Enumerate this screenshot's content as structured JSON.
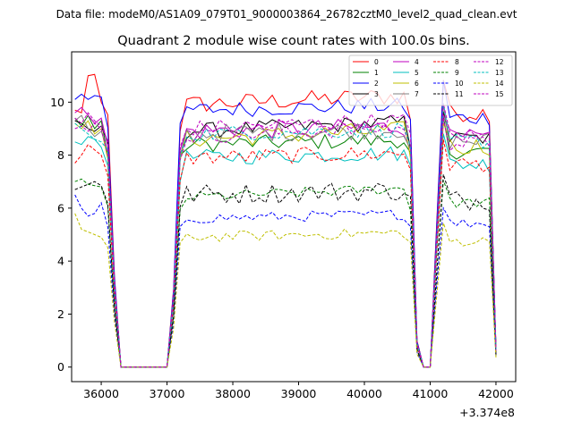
{
  "figure": {
    "suptitle": "Data file: modeM0/AS1A09_079T01_9000003864_26782cztM0_level2_quad_clean.evt"
  },
  "chart_data": {
    "type": "line",
    "title": "Quadrant 2 module wise count rates with 100.0s bins.",
    "xlabel": "",
    "ylabel": "",
    "x_offset_label": "+3.374e8",
    "xlim": [
      35550,
      42300
    ],
    "ylim": [
      -0.55,
      11.9
    ],
    "x_ticks": [
      36000,
      37000,
      38000,
      39000,
      40000,
      41000,
      42000
    ],
    "x_tick_labels": [
      "36000",
      "37000",
      "38000",
      "39000",
      "40000",
      "41000",
      "42000"
    ],
    "y_ticks": [
      0,
      2,
      4,
      6,
      8,
      10
    ],
    "y_tick_labels": [
      "0",
      "2",
      "4",
      "6",
      "8",
      "10"
    ],
    "grid": false,
    "legend_position": "top-right",
    "segments": [
      {
        "start": 35600,
        "end": 42000,
        "gaps": [
          [
            36300,
            37000
          ],
          [
            41000,
            41000
          ]
        ]
      }
    ],
    "series": [
      {
        "name": "0",
        "color": "#ff0000",
        "dash": "solid",
        "level": 9.9,
        "noise": 0.35,
        "first": [
          9.7,
          9.6,
          11.0,
          11.05,
          10.0
        ]
      },
      {
        "name": "1",
        "color": "#008000",
        "dash": "solid",
        "level": 8.4,
        "noise": 0.3,
        "first": [
          9.4,
          9.1,
          9.5,
          9.0,
          9.3
        ]
      },
      {
        "name": "2",
        "color": "#0000ff",
        "dash": "solid",
        "level": 9.7,
        "noise": 0.3,
        "first": [
          10.1,
          10.3,
          10.1,
          10.25,
          10.2
        ]
      },
      {
        "name": "3",
        "color": "#000000",
        "dash": "solid",
        "level": 8.9,
        "noise": 0.3,
        "first": [
          9.3,
          9.2,
          9.0,
          8.9,
          9.1
        ]
      },
      {
        "name": "4",
        "color": "#bf00bf",
        "dash": "solid",
        "level": 8.9,
        "noise": 0.35,
        "first": [
          9.6,
          9.8,
          9.5,
          9.2,
          9.4
        ]
      },
      {
        "name": "5",
        "color": "#00bfbf",
        "dash": "solid",
        "level": 7.9,
        "noise": 0.3,
        "first": [
          8.5,
          8.4,
          8.7,
          8.6,
          8.3
        ]
      },
      {
        "name": "6",
        "color": "#bfbf00",
        "dash": "solid",
        "level": 8.6,
        "noise": 0.35,
        "first": [
          9.2,
          9.0,
          9.3,
          8.8,
          9.0
        ]
      },
      {
        "name": "7",
        "color": "#808080",
        "dash": "solid",
        "level": 8.8,
        "noise": 0.35,
        "first": [
          9.3,
          9.5,
          9.0,
          8.7,
          8.9
        ]
      },
      {
        "name": "8",
        "color": "#ff0000",
        "dash": "dashed",
        "level": 7.9,
        "noise": 0.3,
        "first": [
          7.7,
          8.0,
          8.4,
          8.2,
          8.0
        ]
      },
      {
        "name": "9",
        "color": "#008000",
        "dash": "dashed",
        "level": 6.4,
        "noise": 0.2,
        "first": [
          7.0,
          7.1,
          6.9,
          6.85,
          6.8
        ]
      },
      {
        "name": "10",
        "color": "#0000ff",
        "dash": "dashed",
        "level": 5.6,
        "noise": 0.2,
        "first": [
          6.5,
          6.0,
          5.7,
          5.8,
          6.2
        ]
      },
      {
        "name": "11",
        "color": "#000000",
        "dash": "dashed",
        "level": 6.5,
        "noise": 0.4,
        "first": [
          6.7,
          6.8,
          6.9,
          7.0,
          6.85
        ]
      },
      {
        "name": "12",
        "color": "#bf00bf",
        "dash": "dashed",
        "level": 8.7,
        "noise": 0.3,
        "first": [
          9.0,
          9.1,
          8.9,
          9.2,
          9.0
        ]
      },
      {
        "name": "13",
        "color": "#00bfbf",
        "dash": "dashed",
        "level": 8.8,
        "noise": 0.3,
        "first": [
          9.2,
          9.0,
          8.8,
          8.6,
          8.5
        ]
      },
      {
        "name": "14",
        "color": "#bfbf00",
        "dash": "dashed",
        "level": 4.9,
        "noise": 0.2,
        "first": [
          5.8,
          5.2,
          5.1,
          5.0,
          4.9
        ]
      },
      {
        "name": "15",
        "color": "#bf00bf",
        "dash": "dashed",
        "level": 9.0,
        "noise": 0.3,
        "first": [
          9.4,
          9.2,
          9.6,
          9.3,
          9.1
        ]
      }
    ]
  }
}
